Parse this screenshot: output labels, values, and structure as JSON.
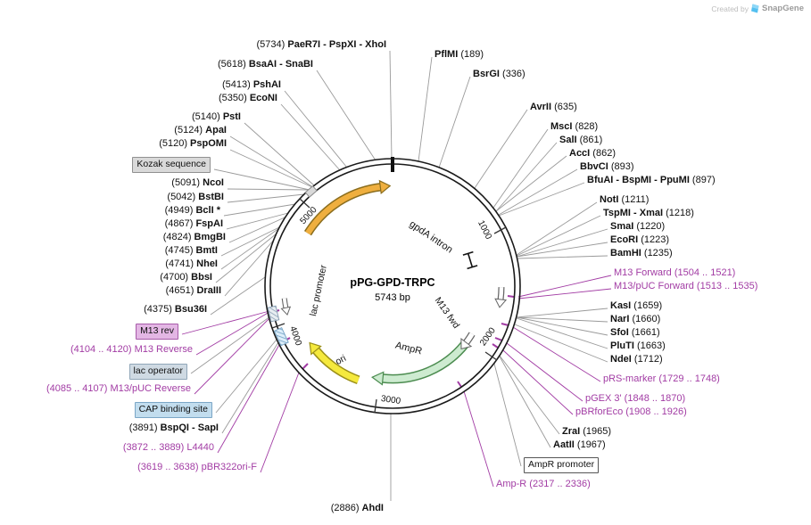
{
  "credit": {
    "prefix": "Created by",
    "brand": "SnapGene"
  },
  "plasmid": {
    "name": "pPG-GPD-TRPC",
    "size": "5743 bp"
  },
  "ticks": [
    "1000",
    "2000",
    "3000",
    "4000",
    "5000"
  ],
  "features": {
    "gpda_intron": "gpdA intron",
    "lac_promoter": "lac promoter",
    "ori": "ori",
    "ampr": "AmpR",
    "m13_fwd": "M13 fwd"
  },
  "labels": {
    "left": [
      {
        "type": "enzyme",
        "pre": "(5734)",
        "name": "PaeR7I - PspXI - XhoI"
      },
      {
        "type": "enzyme",
        "pre": "(5618)",
        "name": "BsaAI - SnaBI"
      },
      {
        "type": "enzyme",
        "pre": "(5413)",
        "name": "PshAI"
      },
      {
        "type": "enzyme",
        "pre": "(5350)",
        "name": "EcoNI"
      },
      {
        "type": "enzyme",
        "pre": "(5140)",
        "name": "PstI"
      },
      {
        "type": "enzyme",
        "pre": "(5124)",
        "name": "ApaI"
      },
      {
        "type": "enzyme",
        "pre": "(5120)",
        "name": "PspOMI"
      },
      {
        "type": "box",
        "kind": "kozak",
        "text": "Kozak sequence"
      },
      {
        "type": "enzyme",
        "pre": "(5091)",
        "name": "NcoI"
      },
      {
        "type": "enzyme",
        "pre": "(5042)",
        "name": "BstBI"
      },
      {
        "type": "enzyme",
        "pre": "(4949)",
        "name": "BclI *"
      },
      {
        "type": "enzyme",
        "pre": "(4867)",
        "name": "FspAI"
      },
      {
        "type": "enzyme",
        "pre": "(4824)",
        "name": "BmgBI"
      },
      {
        "type": "enzyme",
        "pre": "(4745)",
        "name": "BmtI"
      },
      {
        "type": "enzyme",
        "pre": "(4741)",
        "name": "NheI"
      },
      {
        "type": "enzyme",
        "pre": "(4700)",
        "name": "BbsI"
      },
      {
        "type": "enzyme",
        "pre": "(4651)",
        "name": "DraIII"
      },
      {
        "type": "enzyme",
        "pre": "(4375)",
        "name": "Bsu36I"
      },
      {
        "type": "box",
        "kind": "m13rev",
        "text": "M13 rev"
      },
      {
        "type": "primer",
        "pre": "(4104 .. 4120)",
        "name": "M13 Reverse"
      },
      {
        "type": "box",
        "kind": "operator",
        "text": "lac operator"
      },
      {
        "type": "primer",
        "pre": "(4085 .. 4107)",
        "name": "M13/pUC Reverse"
      },
      {
        "type": "box",
        "kind": "cap",
        "text": "CAP binding site"
      },
      {
        "type": "enzyme",
        "pre": "(3891)",
        "name": "BspQI - SapI"
      },
      {
        "type": "primer",
        "pre": "(3872 .. 3889)",
        "name": "L4440"
      },
      {
        "type": "primer",
        "pre": "(3619 .. 3638)",
        "name": "pBR322ori-F"
      },
      {
        "type": "enzyme",
        "pre": "(2886)",
        "name": "AhdI"
      }
    ],
    "right": [
      {
        "type": "enzyme",
        "name": "PflMI",
        "post": "(189)"
      },
      {
        "type": "enzyme",
        "name": "BsrGI",
        "post": "(336)"
      },
      {
        "type": "enzyme",
        "name": "AvrII",
        "post": "(635)"
      },
      {
        "type": "enzyme",
        "name": "MscI",
        "post": "(828)"
      },
      {
        "type": "enzyme",
        "name": "SalI",
        "post": "(861)"
      },
      {
        "type": "enzyme",
        "name": "AccI",
        "post": "(862)"
      },
      {
        "type": "enzyme",
        "name": "BbvCI",
        "post": "(893)"
      },
      {
        "type": "enzyme",
        "name": "BfuAI - BspMI - PpuMI",
        "post": "(897)"
      },
      {
        "type": "enzyme",
        "name": "NotI",
        "post": "(1211)"
      },
      {
        "type": "enzyme",
        "name": "TspMI - XmaI",
        "post": "(1218)"
      },
      {
        "type": "enzyme",
        "name": "SmaI",
        "post": "(1220)"
      },
      {
        "type": "enzyme",
        "name": "EcoRI",
        "post": "(1223)"
      },
      {
        "type": "enzyme",
        "name": "BamHI",
        "post": "(1235)"
      },
      {
        "type": "primer",
        "name": "M13 Forward",
        "post": "(1504 .. 1521)"
      },
      {
        "type": "primer",
        "name": "M13/pUC Forward",
        "post": "(1513 .. 1535)"
      },
      {
        "type": "enzyme",
        "name": "KasI",
        "post": "(1659)"
      },
      {
        "type": "enzyme",
        "name": "NarI",
        "post": "(1660)"
      },
      {
        "type": "enzyme",
        "name": "SfoI",
        "post": "(1661)"
      },
      {
        "type": "enzyme",
        "name": "PluTI",
        "post": "(1663)"
      },
      {
        "type": "enzyme",
        "name": "NdeI",
        "post": "(1712)"
      },
      {
        "type": "primer",
        "name": "pRS-marker",
        "post": "(1729 .. 1748)"
      },
      {
        "type": "primer",
        "name": "pGEX 3'",
        "post": "(1848 .. 1870)"
      },
      {
        "type": "primer",
        "name": "pBRforEco",
        "post": "(1908 .. 1926)"
      },
      {
        "type": "enzyme",
        "name": "ZraI",
        "post": "(1965)"
      },
      {
        "type": "enzyme",
        "name": "AatII",
        "post": "(1967)"
      },
      {
        "type": "box",
        "kind": "promoter",
        "text": "AmpR promoter"
      },
      {
        "type": "primer",
        "name": "Amp-R",
        "post": "(2317 .. 2336)"
      }
    ]
  }
}
